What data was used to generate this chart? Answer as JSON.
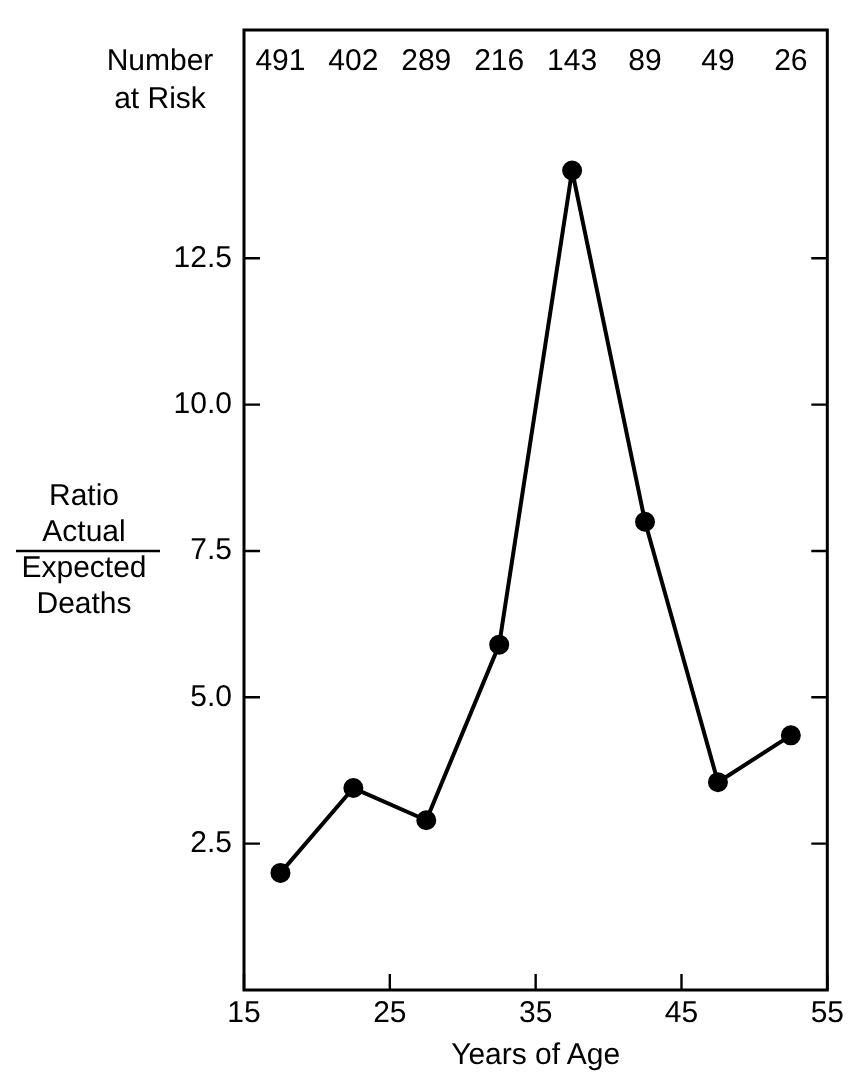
{
  "chart_data": {
    "type": "line",
    "xlabel": "Years of Age",
    "ylabel": "Ratio\nActual\nExpected\nDeaths",
    "annotations": [
      "Number\nat Risk",
      "491",
      "402",
      "289",
      "216",
      "143",
      "89",
      "49",
      "26"
    ],
    "x": [
      17.5,
      22.5,
      27.5,
      32.5,
      37.5,
      42.5,
      47.5,
      52.5
    ],
    "series": [
      {
        "color": "#000000",
        "values": [
          2.0,
          3.45,
          2.9,
          5.9,
          14.0,
          8.0,
          3.55,
          4.35
        ]
      }
    ],
    "xlim": [
      15,
      55
    ],
    "xticks": [
      15,
      25,
      35,
      45,
      55
    ],
    "ylim": [
      0,
      16.4
    ],
    "yticks": [
      {
        "value": 2.5,
        "label": "2.5"
      },
      {
        "value": 5,
        "label": "5.0"
      },
      {
        "value": 7.5,
        "label": "7.5"
      },
      {
        "value": 10,
        "label": "10.0"
      },
      {
        "value": 12.5,
        "label": "12.5"
      }
    ],
    "marker": "circle",
    "line_style": "solid",
    "grid": false,
    "legend": false
  }
}
